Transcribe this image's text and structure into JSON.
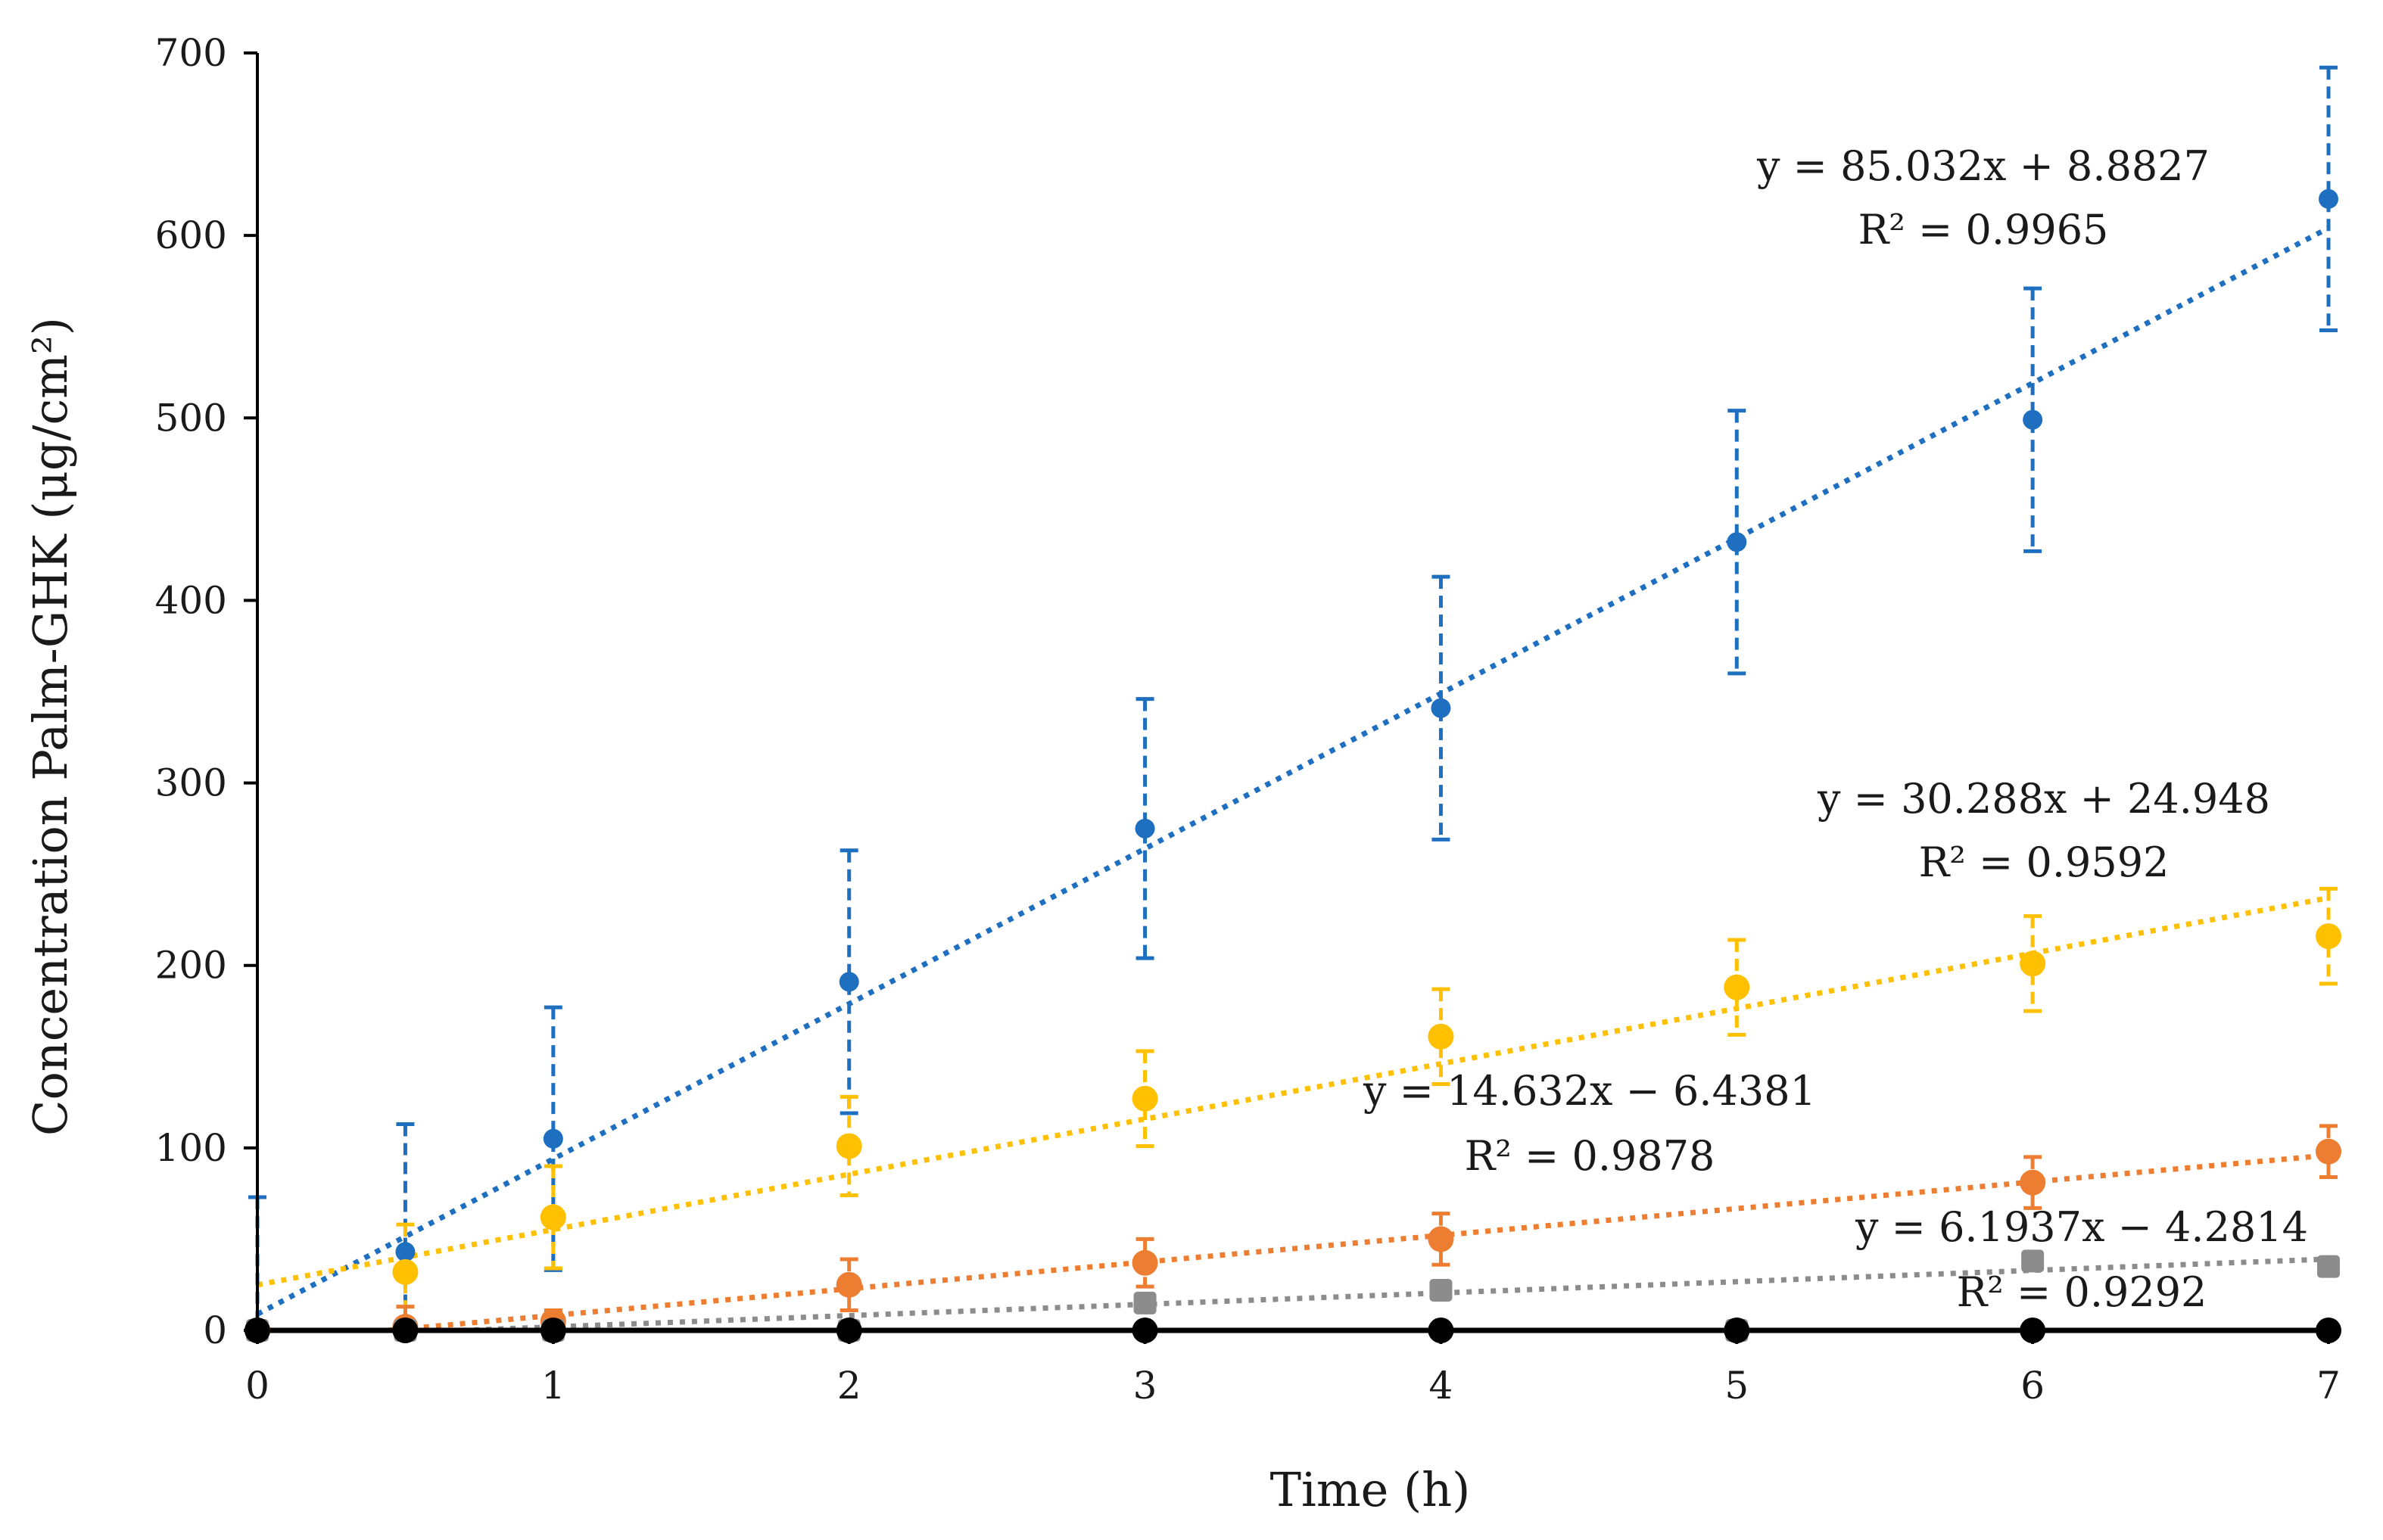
{
  "chart_data": {
    "type": "scatter",
    "title": "",
    "xlabel": "Time (h)",
    "ylabel": "Concentration Palm-GHK (μg/cm²)",
    "xlim": [
      0,
      7
    ],
    "ylim": [
      0,
      700
    ],
    "xticks": [
      0,
      1,
      2,
      3,
      4,
      5,
      6,
      7
    ],
    "yticks": [
      0,
      100,
      200,
      300,
      400,
      500,
      600,
      700
    ],
    "grid": false,
    "x": [
      0,
      0.5,
      1,
      2,
      3,
      4,
      5,
      6,
      7
    ],
    "series": [
      {
        "name": "blue",
        "color": "#1F6FC0",
        "marker": "circle",
        "values": [
          0,
          43,
          105,
          191,
          275,
          341,
          432,
          499,
          620
        ],
        "errors": [
          73,
          70,
          72,
          72,
          71,
          72,
          72,
          72,
          72
        ],
        "trend": {
          "slope": 85.032,
          "intercept": 8.8827,
          "equation": "y = 85.032x + 8.8827",
          "r2": "R² = 0.9965"
        }
      },
      {
        "name": "yellow",
        "color": "#FFC000",
        "marker": "circle",
        "values": [
          0,
          32,
          62,
          101,
          127,
          161,
          188,
          201,
          216
        ],
        "errors": [
          0,
          26,
          28,
          27,
          26,
          26,
          26,
          26,
          26
        ],
        "trend": {
          "slope": 30.288,
          "intercept": 24.948,
          "equation": "y = 30.288x + 24.948",
          "r2": "R² = 0.9592"
        }
      },
      {
        "name": "orange",
        "color": "#ED7D31",
        "marker": "circle",
        "values": [
          0,
          2,
          5,
          25,
          37,
          50,
          0,
          81,
          98
        ],
        "errors": [
          0,
          11,
          6,
          14,
          13,
          14,
          0,
          14,
          14
        ],
        "trend": {
          "slope": 14.632,
          "intercept": -6.4381,
          "equation": "y = 14.632x − 6.4381",
          "r2": "R² = 0.9878"
        }
      },
      {
        "name": "gray",
        "color": "#8C8C8C",
        "marker": "square",
        "values": [
          0,
          0,
          0,
          0,
          15,
          22,
          0,
          38,
          35
        ],
        "errors": [
          0,
          0,
          0,
          0,
          0,
          0,
          0,
          0,
          0
        ],
        "trend": {
          "slope": 6.1937,
          "intercept": -4.2814,
          "equation": "y = 6.1937x − 4.2814",
          "r2": "R² = 0.9292"
        }
      },
      {
        "name": "black",
        "color": "#000000",
        "marker": "circle",
        "values": [
          0,
          0,
          0,
          0,
          0,
          0,
          0,
          0,
          0
        ],
        "errors": [
          0,
          0,
          0,
          0,
          0,
          0,
          0,
          0,
          0
        ],
        "trend": null
      }
    ]
  }
}
